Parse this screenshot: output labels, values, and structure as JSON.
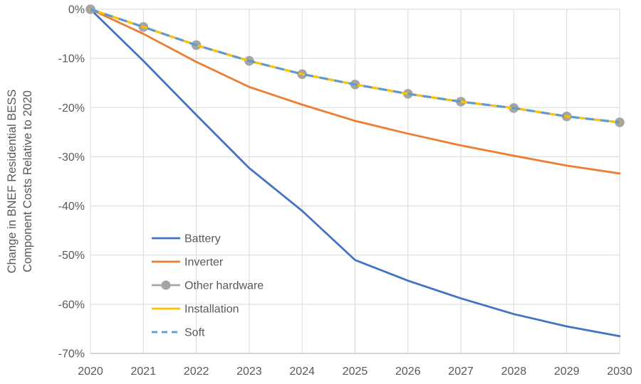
{
  "page": {
    "background": "#FFFFFF"
  },
  "colors": {
    "battery": "#4472C4",
    "inverter": "#ED7D31",
    "other_hardware": "#A5A5A5",
    "installation": "#FFC000",
    "soft": "#5B9BD5",
    "gridline": "#D9D9D9",
    "axis_line": "#BFBFBF",
    "text": "#595959",
    "marker_fill": "#A5A5A5"
  },
  "chart_data": {
    "type": "line",
    "title": "",
    "ylabel": "Change in BNEF Residential BESS\nComponent Costs Relative to 2020",
    "ylabel_lines": [
      "Change in BNEF Residential BESS",
      "Component Costs Relative to 2020"
    ],
    "xlabel": "",
    "x": [
      2020,
      2021,
      2022,
      2023,
      2024,
      2025,
      2026,
      2027,
      2028,
      2029,
      2030
    ],
    "x_tick_labels": [
      "2020",
      "2021",
      "2022",
      "2023",
      "2024",
      "2025",
      "2026",
      "2027",
      "2028",
      "2029",
      "2030"
    ],
    "y_tick_values": [
      0,
      -10,
      -20,
      -30,
      -40,
      -50,
      -60,
      -70
    ],
    "y_tick_labels": [
      "0%",
      "-10%",
      "-20%",
      "-30%",
      "-40%",
      "-50%",
      "-60%",
      "-70%"
    ],
    "ylim": [
      -70,
      0
    ],
    "grid": true,
    "legend_position": "inside lower-left",
    "legend_entries": [
      "Battery",
      "Inverter",
      "Other hardware",
      "Installation",
      "Soft"
    ],
    "series": [
      {
        "name": "Battery",
        "color_key": "battery",
        "line_style": "solid",
        "marker": "none",
        "values": [
          0,
          -10.5,
          -21.5,
          -32.3,
          -41,
          -51,
          -55.2,
          -58.8,
          -62,
          -64.5,
          -66.5
        ]
      },
      {
        "name": "Inverter",
        "color_key": "inverter",
        "line_style": "solid",
        "marker": "none",
        "values": [
          0,
          -5,
          -10.7,
          -15.8,
          -19.4,
          -22.7,
          -25.3,
          -27.7,
          -29.8,
          -31.8,
          -33.4
        ]
      },
      {
        "name": "Other hardware",
        "color_key": "other_hardware",
        "line_style": "solid",
        "marker": "circle",
        "values": [
          0,
          -3.6,
          -7.3,
          -10.5,
          -13.2,
          -15.3,
          -17.2,
          -18.8,
          -20.1,
          -21.8,
          -23
        ]
      },
      {
        "name": "Installation",
        "color_key": "installation",
        "line_style": "solid",
        "marker": "none",
        "values": [
          0,
          -3.6,
          -7.3,
          -10.5,
          -13.2,
          -15.3,
          -17.2,
          -18.8,
          -20.1,
          -21.8,
          -23
        ]
      },
      {
        "name": "Soft",
        "color_key": "soft",
        "line_style": "dashed",
        "marker": "none",
        "values": [
          0,
          -3.6,
          -7.3,
          -10.5,
          -13.2,
          -15.3,
          -17.2,
          -18.8,
          -20.1,
          -21.8,
          -23
        ]
      }
    ]
  }
}
